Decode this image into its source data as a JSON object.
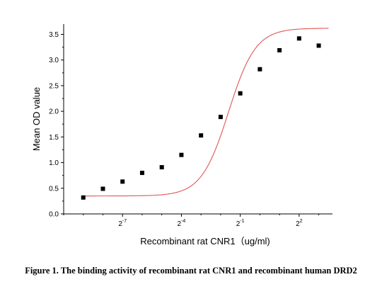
{
  "chart_data": {
    "type": "scatter",
    "title": "",
    "xlabel": "Recombinant rat CNR1（ug/ml)",
    "ylabel": "Mean OD value",
    "x_scale": "log2",
    "xlim": [
      -10.0,
      3.7
    ],
    "ylim": [
      0.0,
      3.7
    ],
    "xticks": [
      {
        "value": -7,
        "base": "2",
        "exp": "-7"
      },
      {
        "value": -4,
        "base": "2",
        "exp": "-4"
      },
      {
        "value": -1,
        "base": "2",
        "exp": "-1"
      },
      {
        "value": 2,
        "base": "2",
        "exp": "2"
      }
    ],
    "yticks": [
      0.0,
      0.5,
      1.0,
      1.5,
      2.0,
      2.5,
      3.0,
      3.5
    ],
    "ytick_labels": [
      "0.0",
      "0.5",
      "1.0",
      "1.5",
      "2.0",
      "2.5",
      "3.0",
      "3.5"
    ],
    "series": [
      {
        "kind": "points",
        "marker": "square",
        "color": "#000000",
        "x_log2": [
          -9,
          -8,
          -7,
          -6,
          -5,
          -4,
          -3,
          -2,
          -1,
          0,
          1,
          2,
          3
        ],
        "y": [
          0.32,
          0.49,
          0.63,
          0.8,
          0.91,
          1.15,
          1.53,
          1.89,
          2.35,
          2.82,
          3.19,
          3.42,
          3.28
        ]
      },
      {
        "kind": "fit",
        "color": "#e05555",
        "model": "4PL",
        "bottom": 0.35,
        "top": 3.62,
        "log2_ec50": -1.6,
        "slope_per_log2": 0.38,
        "x_range_log2": [
          -9,
          3.5
        ]
      }
    ]
  },
  "caption": {
    "text": "Figure 1. The binding activity of recombinant rat CNR1 and recombinant human DRD2"
  }
}
